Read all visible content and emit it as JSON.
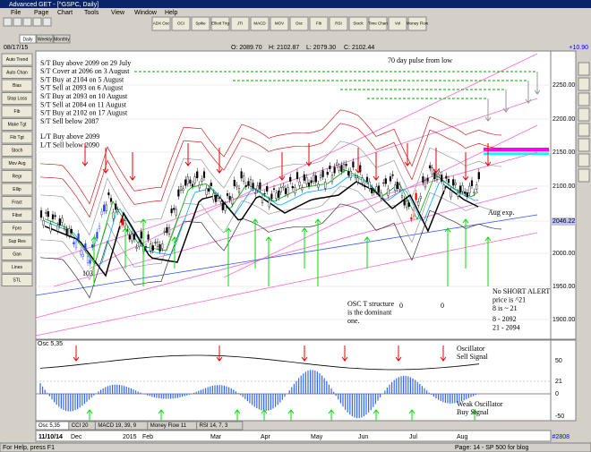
{
  "window": {
    "title": "Advanced GET - [^GSPC, Daily]"
  },
  "menu": [
    "File",
    "Page",
    "Chart",
    "Tools",
    "View",
    "Window",
    "Help"
  ],
  "toolbar": [
    "ADX Osc",
    "OCI",
    "Spike",
    "Elliott Trig",
    "JTI",
    "MACD",
    "MOV",
    "Osc",
    "Fib",
    "RSI",
    "Stock",
    "Time Chart",
    "Vol",
    "Money Flow"
  ],
  "tabs": [
    "Daily",
    "Weekly",
    "Monthly"
  ],
  "left_tools": [
    "Auto Trend",
    "Auto Chan",
    "Bias",
    "Stop Loss",
    "Fib",
    "Make Tgt",
    "Fib Tgt",
    "Stoch",
    "Mov Avg",
    "Regr",
    "Ellip",
    "Fract",
    "Fibst",
    "Fpro",
    "Sup Res",
    "Gan",
    "Lines",
    "STL"
  ],
  "quote": {
    "date": "08/17/15",
    "open": "O: 2089.70",
    "high": "H: 2102.87",
    "low": "L: 2079.30",
    "close": "C: 2102.44",
    "change": "+10.90"
  },
  "price_axis": [
    "2250.00",
    "2200.00",
    "2150.00",
    "2100.00",
    "2046.22",
    "2000.00",
    "1950.00",
    "1900.00"
  ],
  "notes": {
    "st": [
      "S/T Buy above 2099 on 29 July",
      "S/T Cover at 2096 on 3 August",
      "S/T Buy at 2104 on 5 August",
      "S/T Sell at 2093 on 6 August",
      "S/T Buy at 2093 on 10 August",
      "S/T Sell at 2084 on 11 August",
      "S/T Buy at 2102 on 17 August",
      "S/T Sell below 2087"
    ],
    "lt": [
      "L/T Buy above 2099",
      "L/T Sell below 2090"
    ],
    "pulse": "70 day pulse from low",
    "aug": "Aug exp.",
    "low": "103",
    "osc_t": [
      "OSC T structure",
      "is the dominant",
      "one."
    ],
    "zero1": "0",
    "zero2": "0",
    "alert": [
      "No SHORT ALERT",
      "price is ^21",
      "8 is ~ 21"
    ],
    "ma": [
      "8  - 2092",
      "21 - 2094"
    ]
  },
  "osc": {
    "label": "Osc 5,35",
    "axis": [
      "50",
      "21",
      "0",
      "-50"
    ],
    "sell": [
      "Oscillator",
      "Sell Signal"
    ],
    "buy": [
      "Weak Oscillator",
      "Buy Signal"
    ]
  },
  "indicator_tabs": [
    "Osc 5,35",
    "CCI 20",
    "MACD 19, 39, 9",
    "Money Flow 11",
    "RSI 14, 7, 3"
  ],
  "date_axis": [
    "11/10/14",
    "Dec",
    "2015",
    "Feb",
    "Mar",
    "Apr",
    "May",
    "Jun",
    "Jul",
    "Aug"
  ],
  "bar_count": "#2808",
  "status": {
    "help": "For Help, press F1",
    "page": "Page: 14 - SP 500 for blog"
  }
}
